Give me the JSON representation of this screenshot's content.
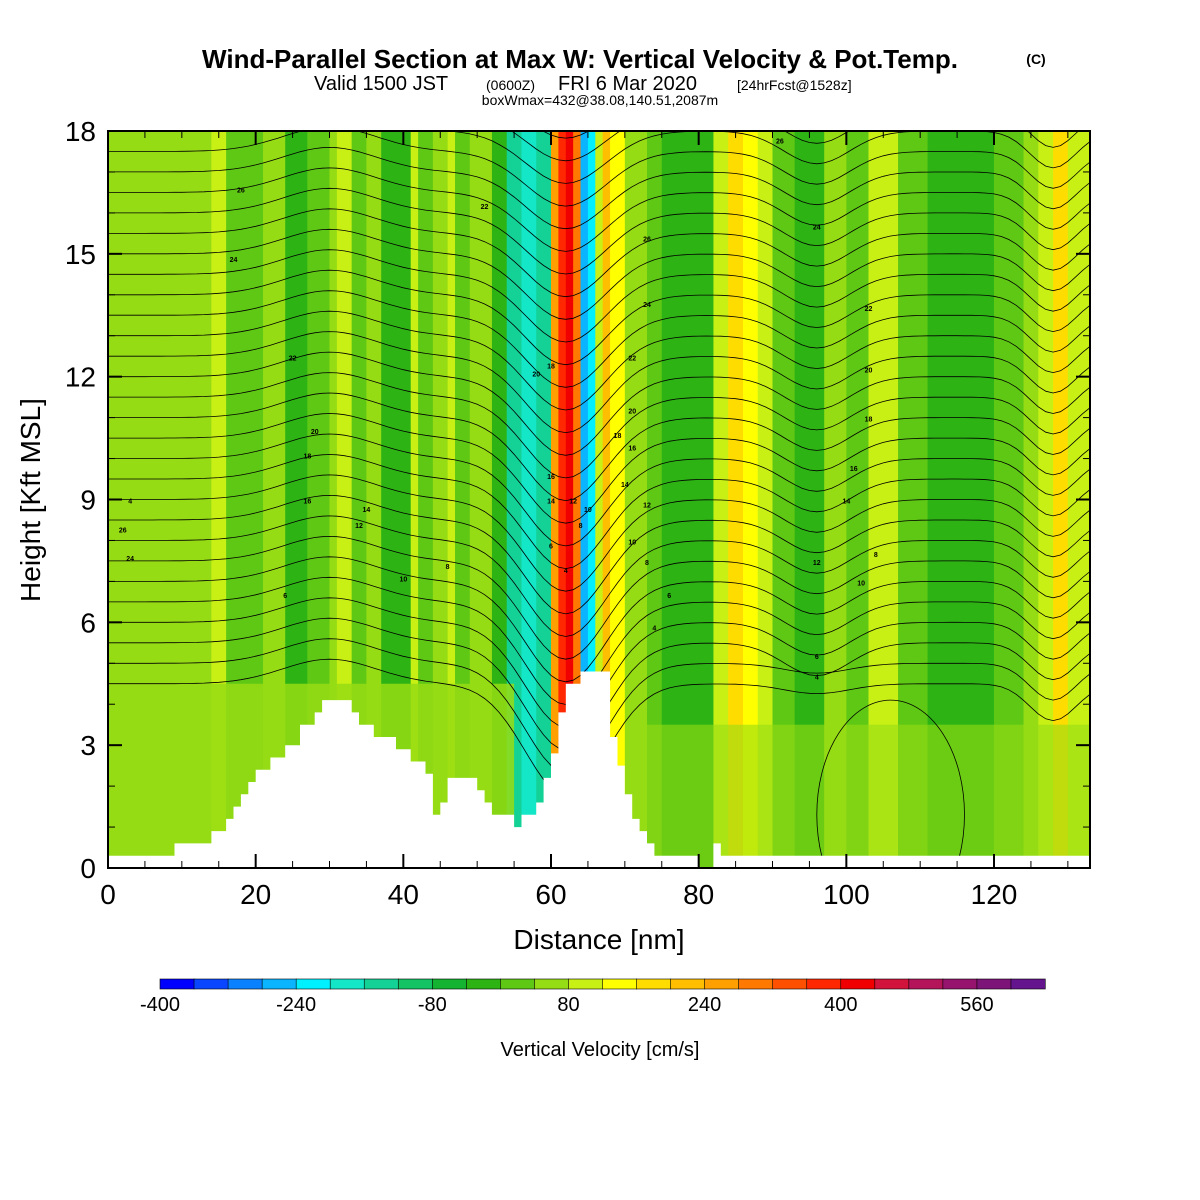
{
  "header": {
    "title": "Wind-Parallel Section at Max W: Vertical Velocity & Pot.Temp.",
    "copyright": "(C)",
    "valid_prefix": "Valid 1500 JST",
    "valid_utc": "(0600Z)",
    "valid_date": "FRI 6 Mar 2020",
    "forecast_info": "[24hrFcst@1528z]",
    "box_info": "boxWmax=432@38.08,140.51,2087m"
  },
  "chart_data": {
    "type": "heatmap",
    "title": "Wind-Parallel Section at Max W: Vertical Velocity & Pot.Temp.",
    "xlabel": "Distance [nm]",
    "ylabel": "Height [Kft MSL]",
    "xlim": [
      0,
      133
    ],
    "ylim": [
      0,
      18
    ],
    "x_ticks": [
      0,
      20,
      40,
      60,
      80,
      100,
      120
    ],
    "y_ticks": [
      0,
      3,
      6,
      9,
      12,
      15,
      18
    ],
    "colorbar": {
      "title": "Vertical Velocity [cm/s]",
      "min": -400,
      "max": 640,
      "step": 40,
      "tick_values": [
        -400,
        -240,
        -80,
        80,
        240,
        400,
        560
      ],
      "tick_labels": [
        "-400",
        "-240",
        "-80",
        "80",
        "240",
        "400",
        "560"
      ],
      "colors": [
        "#0000ff",
        "#0a46ff",
        "#0a82ff",
        "#0ab4ff",
        "#00f0ff",
        "#14e6c8",
        "#14d296",
        "#14c364",
        "#14b432",
        "#2db414",
        "#5fc814",
        "#96dc14",
        "#c8f014",
        "#ffff00",
        "#ffdc00",
        "#ffbe00",
        "#ffa000",
        "#ff7800",
        "#ff5000",
        "#ff2800",
        "#f00000",
        "#d2143c",
        "#b4145a",
        "#96146e",
        "#7d1478",
        "#64148c"
      ]
    },
    "terrain_kft": [
      [
        0,
        0.3
      ],
      [
        9,
        0.3
      ],
      [
        9,
        0.6
      ],
      [
        14,
        0.6
      ],
      [
        14,
        0.9
      ],
      [
        16,
        0.9
      ],
      [
        16,
        1.2
      ],
      [
        17,
        1.2
      ],
      [
        17,
        1.5
      ],
      [
        18,
        1.5
      ],
      [
        18,
        1.8
      ],
      [
        19,
        1.8
      ],
      [
        19,
        2.1
      ],
      [
        20,
        2.1
      ],
      [
        20,
        2.4
      ],
      [
        22,
        2.4
      ],
      [
        22,
        2.7
      ],
      [
        24,
        2.7
      ],
      [
        24,
        3.0
      ],
      [
        26,
        3.0
      ],
      [
        26,
        3.5
      ],
      [
        28,
        3.5
      ],
      [
        28,
        3.8
      ],
      [
        29,
        3.8
      ],
      [
        29,
        4.1
      ],
      [
        33,
        4.1
      ],
      [
        33,
        3.8
      ],
      [
        34,
        3.8
      ],
      [
        34,
        3.5
      ],
      [
        36,
        3.5
      ],
      [
        36,
        3.2
      ],
      [
        39,
        3.2
      ],
      [
        39,
        2.9
      ],
      [
        41,
        2.9
      ],
      [
        41,
        2.6
      ],
      [
        43,
        2.6
      ],
      [
        43,
        2.3
      ],
      [
        44,
        2.3
      ],
      [
        44,
        1.3
      ],
      [
        45,
        1.3
      ],
      [
        45,
        1.6
      ],
      [
        46,
        1.6
      ],
      [
        46,
        2.2
      ],
      [
        50,
        2.2
      ],
      [
        50,
        1.9
      ],
      [
        51,
        1.9
      ],
      [
        51,
        1.6
      ],
      [
        52,
        1.6
      ],
      [
        52,
        1.3
      ],
      [
        55,
        1.3
      ],
      [
        55,
        1.0
      ],
      [
        56,
        1.0
      ],
      [
        56,
        1.3
      ],
      [
        58,
        1.3
      ],
      [
        58,
        1.6
      ],
      [
        59,
        1.6
      ],
      [
        59,
        2.2
      ],
      [
        60,
        2.2
      ],
      [
        60,
        2.8
      ],
      [
        61,
        2.8
      ],
      [
        61,
        3.8
      ],
      [
        62,
        3.8
      ],
      [
        62,
        4.5
      ],
      [
        64,
        4.5
      ],
      [
        64,
        4.8
      ],
      [
        68,
        4.8
      ],
      [
        68,
        3.2
      ],
      [
        69,
        3.2
      ],
      [
        69,
        2.5
      ],
      [
        70,
        2.5
      ],
      [
        70,
        1.8
      ],
      [
        71,
        1.8
      ],
      [
        71,
        1.2
      ],
      [
        72,
        1.2
      ],
      [
        72,
        0.9
      ],
      [
        73,
        0.9
      ],
      [
        73,
        0.6
      ],
      [
        74,
        0.6
      ],
      [
        74,
        0.3
      ],
      [
        80,
        0.3
      ],
      [
        80,
        0.0
      ],
      [
        82,
        0.0
      ],
      [
        82,
        0.6
      ],
      [
        83,
        0.6
      ],
      [
        83,
        0.3
      ],
      [
        133,
        0.3
      ]
    ],
    "contour_labels": [
      "26",
      "24",
      "22",
      "20",
      "18",
      "16",
      "14",
      "12",
      "10",
      "8",
      "6",
      "4"
    ]
  },
  "colorbar_title": "Vertical Velocity [cm/s]"
}
